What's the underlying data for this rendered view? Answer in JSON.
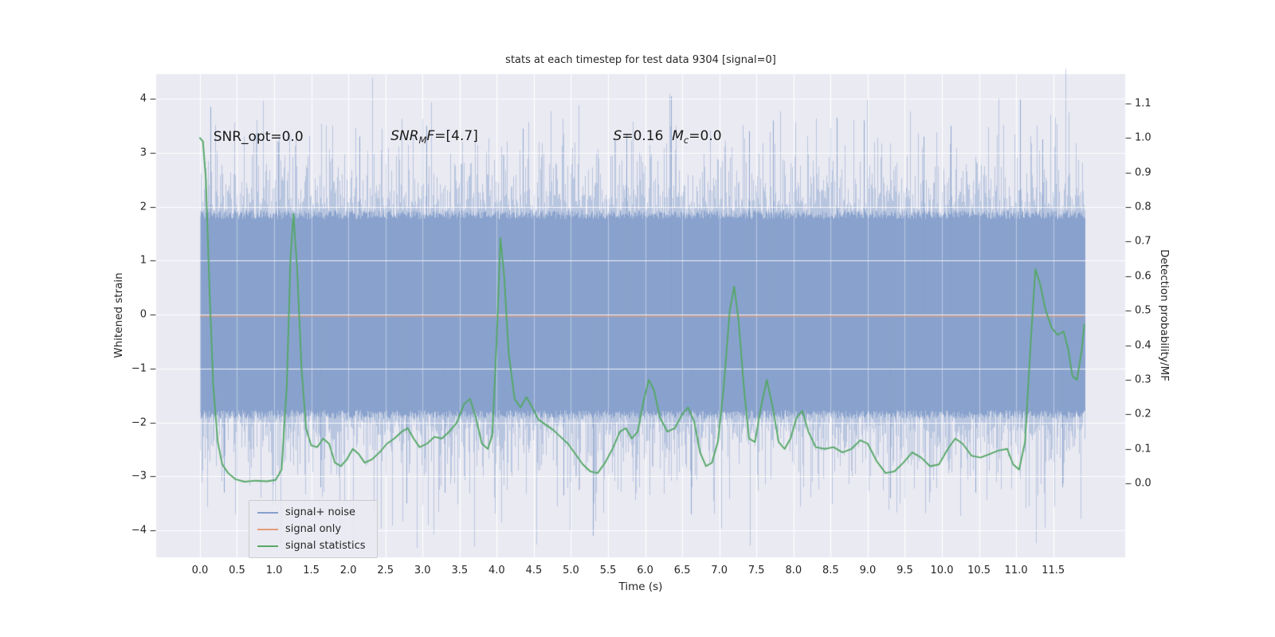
{
  "chart_data": {
    "type": "line",
    "title": "stats at each timestep for test data 9304 [signal=0]",
    "xlabel": "Time (s)",
    "ylabel_left": "Whitened strain",
    "ylabel_right": "Detection probability/MF",
    "plot_bg": "#eaeaf2",
    "grid_color": "#ffffff",
    "xlim": [
      -0.59,
      12.47
    ],
    "ylim_left": [
      -4.5,
      4.46
    ],
    "ylim_right": [
      -0.214,
      1.185
    ],
    "x_ticks": {
      "values": [
        0,
        0.5,
        1,
        1.5,
        2,
        2.5,
        3,
        3.5,
        4,
        4.5,
        5,
        5.5,
        6,
        6.5,
        7,
        7.5,
        8,
        8.5,
        9,
        9.5,
        10,
        10.5,
        11,
        11.5
      ],
      "labels": [
        "0.0",
        "0.5",
        "1.0",
        "1.5",
        "2.0",
        "2.5",
        "3.0",
        "3.5",
        "4.0",
        "4.5",
        "5.0",
        "5.5",
        "6.0",
        "6.5",
        "7.0",
        "7.5",
        "8.0",
        "8.5",
        "9.0",
        "9.5",
        "10.0",
        "10.5",
        "11.0",
        "11.5"
      ]
    },
    "y_left_ticks": {
      "values": [
        -4,
        -3,
        -2,
        -1,
        0,
        1,
        2,
        3,
        4
      ],
      "labels": [
        "−4",
        "−3",
        "−2",
        "−1",
        "0",
        "1",
        "2",
        "3",
        "4"
      ]
    },
    "y_right_ticks": {
      "values": [
        0,
        0.1,
        0.2,
        0.3,
        0.4,
        0.5,
        0.6,
        0.7,
        0.8,
        0.9,
        1.0,
        1.1
      ],
      "labels": [
        "0.0",
        "0.1",
        "0.2",
        "0.3",
        "0.4",
        "0.5",
        "0.6",
        "0.7",
        "0.8",
        "0.9",
        "1.0",
        "1.1"
      ]
    },
    "annotations": [
      {
        "x": 0.18,
        "y": 3.3,
        "segments": [
          {
            "text": "SNR_opt=0.0",
            "italic": false,
            "sub": false
          }
        ]
      },
      {
        "x": 2.57,
        "y": 3.3,
        "segments": [
          {
            "text": "SNR",
            "italic": true,
            "sub": false
          },
          {
            "text": "M",
            "italic": true,
            "sub": true
          },
          {
            "text": "F",
            "italic": true,
            "sub": false
          },
          {
            "text": "=[4.7]",
            "italic": false,
            "sub": false
          }
        ]
      },
      {
        "x": 5.57,
        "y": 3.3,
        "segments": [
          {
            "text": "S",
            "italic": true,
            "sub": false
          },
          {
            "text": "=0.16  ",
            "italic": false,
            "sub": false
          },
          {
            "text": "M",
            "italic": true,
            "sub": false
          },
          {
            "text": "c",
            "italic": true,
            "sub": true
          },
          {
            "text": "=0.0",
            "italic": false,
            "sub": false
          }
        ]
      }
    ],
    "series": [
      {
        "name": "signal+ noise",
        "type": "noise_band",
        "axis": "left",
        "color": "#86a0cb",
        "t_start": 0.0,
        "t_end": 11.92,
        "mean": 0.0,
        "std": 0.95,
        "core_halfwidth": 1.85,
        "seed": 9304,
        "extremes": [
          [
            0.14,
            3.85
          ],
          [
            0.32,
            -3.3
          ],
          [
            1.05,
            3.2
          ],
          [
            1.62,
            -3.2
          ],
          [
            2.15,
            3.3
          ],
          [
            2.78,
            -3.5
          ],
          [
            3.05,
            3.5
          ],
          [
            3.3,
            -3.3
          ],
          [
            4.35,
            3.45
          ],
          [
            4.9,
            -3.35
          ],
          [
            5.3,
            -4.1
          ],
          [
            5.75,
            3.35
          ],
          [
            6.35,
            4.05
          ],
          [
            6.62,
            -3.7
          ],
          [
            7.4,
            3.4
          ],
          [
            7.72,
            3.6
          ],
          [
            8.58,
            3.65
          ],
          [
            8.95,
            3.6
          ],
          [
            9.3,
            -3.4
          ],
          [
            9.75,
            3.3
          ],
          [
            10.12,
            3.5
          ],
          [
            10.45,
            -3.3
          ],
          [
            11.05,
            4.0
          ],
          [
            11.35,
            3.25
          ],
          [
            11.62,
            -3.2
          ]
        ]
      },
      {
        "name": "signal only",
        "type": "hline",
        "axis": "left",
        "color": "#e49b76",
        "value": -0.03,
        "t_start": 0.0,
        "t_end": 11.92
      },
      {
        "name": "signal statistics",
        "type": "line",
        "axis": "right",
        "color": "#55a868",
        "points": [
          [
            0.0,
            1.0
          ],
          [
            0.04,
            0.99
          ],
          [
            0.08,
            0.88
          ],
          [
            0.13,
            0.55
          ],
          [
            0.18,
            0.28
          ],
          [
            0.24,
            0.12
          ],
          [
            0.3,
            0.055
          ],
          [
            0.38,
            0.03
          ],
          [
            0.48,
            0.012
          ],
          [
            0.6,
            0.005
          ],
          [
            0.75,
            0.008
          ],
          [
            0.9,
            0.006
          ],
          [
            1.02,
            0.01
          ],
          [
            1.1,
            0.04
          ],
          [
            1.17,
            0.28
          ],
          [
            1.22,
            0.65
          ],
          [
            1.26,
            0.78
          ],
          [
            1.31,
            0.62
          ],
          [
            1.37,
            0.33
          ],
          [
            1.43,
            0.16
          ],
          [
            1.5,
            0.11
          ],
          [
            1.58,
            0.105
          ],
          [
            1.66,
            0.13
          ],
          [
            1.74,
            0.115
          ],
          [
            1.82,
            0.06
          ],
          [
            1.9,
            0.05
          ],
          [
            1.98,
            0.07
          ],
          [
            2.06,
            0.1
          ],
          [
            2.14,
            0.085
          ],
          [
            2.22,
            0.06
          ],
          [
            2.32,
            0.07
          ],
          [
            2.42,
            0.09
          ],
          [
            2.52,
            0.115
          ],
          [
            2.62,
            0.13
          ],
          [
            2.72,
            0.15
          ],
          [
            2.8,
            0.16
          ],
          [
            2.88,
            0.13
          ],
          [
            2.96,
            0.105
          ],
          [
            3.06,
            0.115
          ],
          [
            3.16,
            0.135
          ],
          [
            3.26,
            0.13
          ],
          [
            3.36,
            0.15
          ],
          [
            3.46,
            0.175
          ],
          [
            3.56,
            0.23
          ],
          [
            3.64,
            0.245
          ],
          [
            3.72,
            0.19
          ],
          [
            3.8,
            0.115
          ],
          [
            3.88,
            0.1
          ],
          [
            3.94,
            0.14
          ],
          [
            4.0,
            0.42
          ],
          [
            4.05,
            0.71
          ],
          [
            4.1,
            0.6
          ],
          [
            4.16,
            0.38
          ],
          [
            4.24,
            0.245
          ],
          [
            4.32,
            0.22
          ],
          [
            4.4,
            0.25
          ],
          [
            4.48,
            0.22
          ],
          [
            4.56,
            0.185
          ],
          [
            4.66,
            0.17
          ],
          [
            4.76,
            0.155
          ],
          [
            4.86,
            0.135
          ],
          [
            4.96,
            0.115
          ],
          [
            5.06,
            0.085
          ],
          [
            5.16,
            0.055
          ],
          [
            5.26,
            0.035
          ],
          [
            5.36,
            0.03
          ],
          [
            5.46,
            0.06
          ],
          [
            5.56,
            0.1
          ],
          [
            5.66,
            0.15
          ],
          [
            5.74,
            0.16
          ],
          [
            5.82,
            0.13
          ],
          [
            5.9,
            0.15
          ],
          [
            5.98,
            0.24
          ],
          [
            6.05,
            0.3
          ],
          [
            6.12,
            0.27
          ],
          [
            6.2,
            0.19
          ],
          [
            6.3,
            0.15
          ],
          [
            6.4,
            0.16
          ],
          [
            6.5,
            0.2
          ],
          [
            6.58,
            0.22
          ],
          [
            6.66,
            0.18
          ],
          [
            6.74,
            0.09
          ],
          [
            6.82,
            0.05
          ],
          [
            6.9,
            0.06
          ],
          [
            6.98,
            0.12
          ],
          [
            7.06,
            0.28
          ],
          [
            7.14,
            0.5
          ],
          [
            7.2,
            0.57
          ],
          [
            7.26,
            0.47
          ],
          [
            7.33,
            0.28
          ],
          [
            7.4,
            0.13
          ],
          [
            7.48,
            0.12
          ],
          [
            7.56,
            0.22
          ],
          [
            7.64,
            0.3
          ],
          [
            7.72,
            0.22
          ],
          [
            7.8,
            0.12
          ],
          [
            7.88,
            0.1
          ],
          [
            7.96,
            0.13
          ],
          [
            8.04,
            0.19
          ],
          [
            8.12,
            0.21
          ],
          [
            8.2,
            0.15
          ],
          [
            8.3,
            0.105
          ],
          [
            8.42,
            0.1
          ],
          [
            8.54,
            0.105
          ],
          [
            8.66,
            0.09
          ],
          [
            8.78,
            0.1
          ],
          [
            8.9,
            0.125
          ],
          [
            9.0,
            0.115
          ],
          [
            9.12,
            0.065
          ],
          [
            9.24,
            0.03
          ],
          [
            9.36,
            0.035
          ],
          [
            9.48,
            0.06
          ],
          [
            9.6,
            0.09
          ],
          [
            9.72,
            0.075
          ],
          [
            9.84,
            0.05
          ],
          [
            9.96,
            0.055
          ],
          [
            10.08,
            0.1
          ],
          [
            10.18,
            0.13
          ],
          [
            10.28,
            0.115
          ],
          [
            10.4,
            0.08
          ],
          [
            10.52,
            0.075
          ],
          [
            10.64,
            0.085
          ],
          [
            10.76,
            0.095
          ],
          [
            10.88,
            0.1
          ],
          [
            10.96,
            0.055
          ],
          [
            11.04,
            0.04
          ],
          [
            11.12,
            0.12
          ],
          [
            11.2,
            0.42
          ],
          [
            11.26,
            0.62
          ],
          [
            11.32,
            0.58
          ],
          [
            11.4,
            0.5
          ],
          [
            11.48,
            0.45
          ],
          [
            11.56,
            0.43
          ],
          [
            11.64,
            0.44
          ],
          [
            11.7,
            0.39
          ],
          [
            11.76,
            0.31
          ],
          [
            11.82,
            0.3
          ],
          [
            11.88,
            0.38
          ],
          [
            11.92,
            0.46
          ]
        ]
      }
    ]
  }
}
